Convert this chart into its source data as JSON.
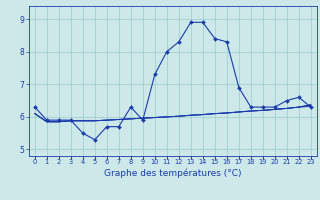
{
  "title": "Graphe des températures (°C)",
  "bg_color": "#cce8e8",
  "line_color": "#1a3aad",
  "grid_color": "#99cccc",
  "xlim": [
    -0.5,
    23.5
  ],
  "ylim": [
    4.8,
    9.4
  ],
  "yticks": [
    5,
    6,
    7,
    8,
    9
  ],
  "xtick_labels": [
    "0",
    "1",
    "2",
    "3",
    "4",
    "5",
    "6",
    "7",
    "8",
    "9",
    "10",
    "11",
    "12",
    "13",
    "14",
    "15",
    "16",
    "17",
    "18",
    "19",
    "20",
    "21",
    "22",
    "23"
  ],
  "hours": [
    0,
    1,
    2,
    3,
    4,
    5,
    6,
    7,
    8,
    9,
    10,
    11,
    12,
    13,
    14,
    15,
    16,
    17,
    18,
    19,
    20,
    21,
    22,
    23
  ],
  "temp_main": [
    6.3,
    5.9,
    5.9,
    5.9,
    5.5,
    5.3,
    5.7,
    5.7,
    6.3,
    5.9,
    7.3,
    8.0,
    8.3,
    8.9,
    8.9,
    8.4,
    8.3,
    6.9,
    6.3,
    6.3,
    6.3,
    6.5,
    6.6,
    6.3
  ],
  "temp_line2": [
    6.1,
    5.85,
    5.85,
    5.88,
    5.88,
    5.88,
    5.9,
    5.92,
    5.94,
    5.96,
    5.98,
    6.0,
    6.02,
    6.05,
    6.07,
    6.1,
    6.12,
    6.15,
    6.18,
    6.2,
    6.23,
    6.26,
    6.3,
    6.32
  ],
  "temp_line3": [
    6.1,
    5.85,
    5.85,
    5.88,
    5.88,
    5.88,
    5.9,
    5.92,
    5.94,
    5.96,
    5.98,
    6.0,
    6.02,
    6.05,
    6.07,
    6.1,
    6.12,
    6.15,
    6.18,
    6.2,
    6.23,
    6.26,
    6.3,
    6.35
  ],
  "temp_line4": [
    6.1,
    5.85,
    5.85,
    5.88,
    5.88,
    5.88,
    5.9,
    5.92,
    5.94,
    5.96,
    5.98,
    6.0,
    6.02,
    6.05,
    6.07,
    6.1,
    6.12,
    6.15,
    6.18,
    6.2,
    6.23,
    6.26,
    6.3,
    6.38
  ],
  "figsize": [
    3.2,
    2.0
  ],
  "dpi": 100
}
